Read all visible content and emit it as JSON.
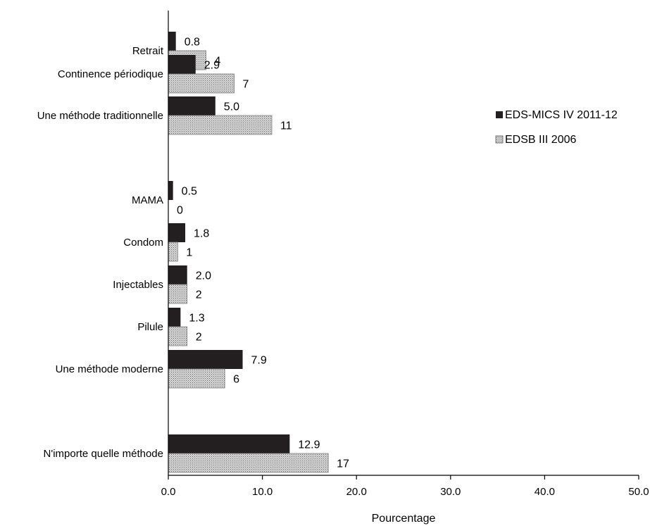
{
  "chart_data": {
    "type": "bar",
    "orientation": "horizontal",
    "xlabel": "Pourcentage",
    "xlim": [
      0,
      50
    ],
    "xticks": [
      "0.0",
      "10.0",
      "20.0",
      "30.0",
      "40.0",
      "50.0"
    ],
    "grid": false,
    "legend_position": "right",
    "categories": [
      "Retrait",
      "Continence périodique",
      "Une méthode traditionnelle",
      "MAMA",
      "Condom",
      "Injectables",
      "Pilule",
      "Une méthode moderne",
      "N'importe quelle méthode"
    ],
    "series": [
      {
        "name": "EDS-MICS IV 2011-12",
        "color": "#231f20",
        "pattern": "solid",
        "values": [
          0.8,
          2.9,
          5.0,
          0.5,
          1.8,
          2.0,
          1.3,
          7.9,
          12.9
        ],
        "labels": [
          "0.8",
          "2.9",
          "5.0",
          "0.5",
          "1.8",
          "2.0",
          "1.3",
          "7.9",
          "12.9"
        ]
      },
      {
        "name": "EDSB III 2006",
        "color": "#c8c8c8",
        "pattern": "dotted",
        "values": [
          4,
          7,
          11,
          0,
          1,
          2,
          2,
          6,
          17
        ],
        "labels": [
          "4",
          "7",
          "11",
          "0",
          "1",
          "2",
          "2",
          "6",
          "17"
        ]
      }
    ]
  }
}
